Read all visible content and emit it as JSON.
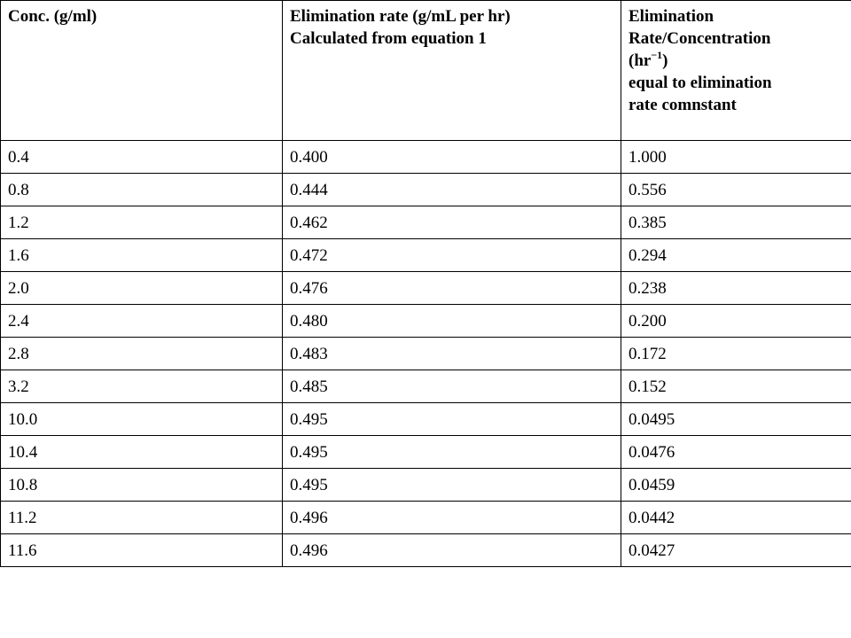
{
  "table": {
    "headers": {
      "conc": "Conc. (g/ml)",
      "rate_line1": "Elimination rate (g/mL per hr)",
      "rate_line2": "Calculated from equation 1",
      "ratio_line1": "Elimination",
      "ratio_line2": "Rate/Concentration",
      "ratio_unit_pre": "(hr",
      "ratio_unit_exp": "−1",
      "ratio_unit_post": ")",
      "ratio_line4": "equal to elimination",
      "ratio_line5": "rate comnstant"
    },
    "rows": [
      [
        "0.4",
        "0.400",
        "1.000"
      ],
      [
        "0.8",
        "0.444",
        "0.556"
      ],
      [
        "1.2",
        "0.462",
        "0.385"
      ],
      [
        "1.6",
        "0.472",
        "0.294"
      ],
      [
        "2.0",
        "0.476",
        "0.238"
      ],
      [
        "2.4",
        "0.480",
        "0.200"
      ],
      [
        "2.8",
        "0.483",
        "0.172"
      ],
      [
        "3.2",
        "0.485",
        "0.152"
      ],
      [
        "10.0",
        "0.495",
        "0.0495"
      ],
      [
        "10.4",
        "0.495",
        "0.0476"
      ],
      [
        "10.8",
        "0.495",
        "0.0459"
      ],
      [
        "11.2",
        "0.496",
        "0.0442"
      ],
      [
        "11.6",
        "0.496",
        "0.0427"
      ]
    ]
  }
}
